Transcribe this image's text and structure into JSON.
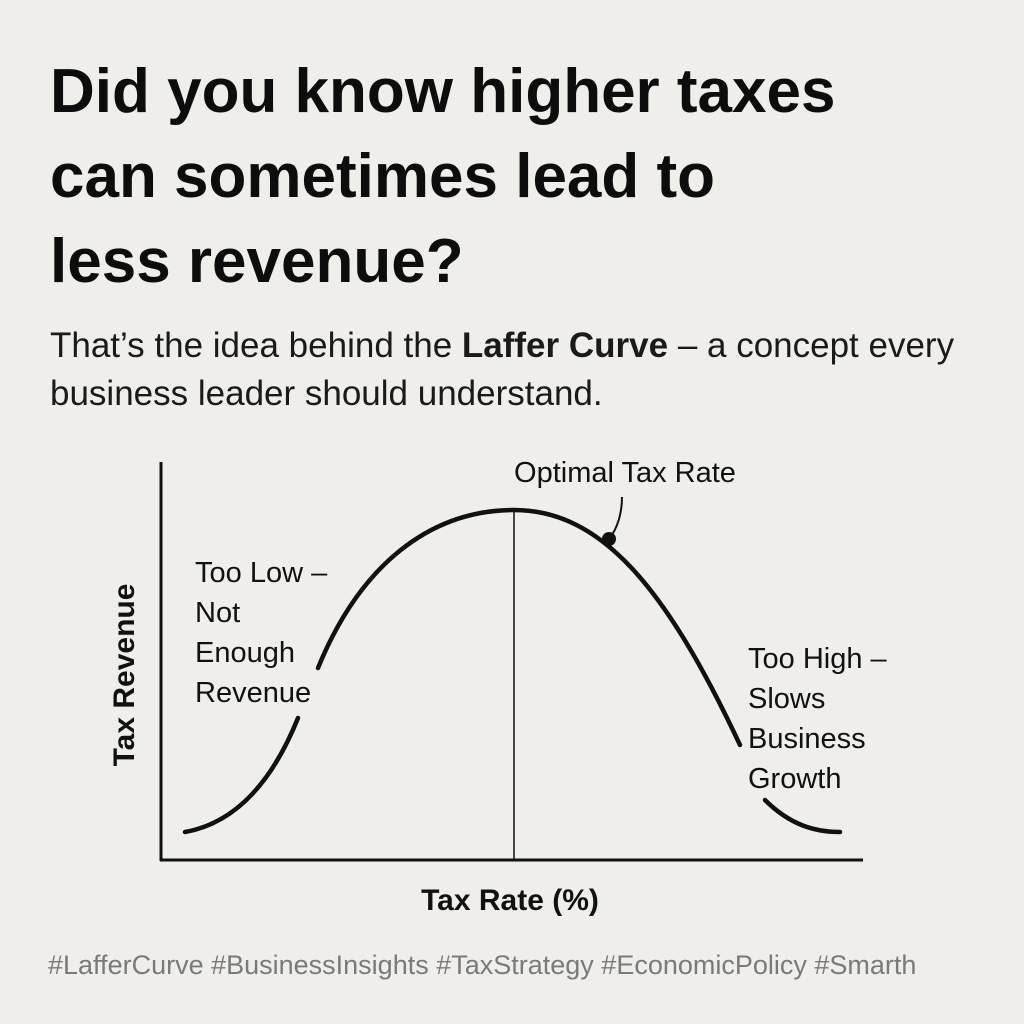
{
  "headline": {
    "lines": [
      "Did you know higher taxes",
      "can sometimes lead to",
      "less revenue?"
    ]
  },
  "subtitle": {
    "before": "That’s the idea behind the",
    "bold": "Laffer Curve",
    "after": "– a concept every business leader should understand."
  },
  "diagram": {
    "y_axis_label": "Tax Revenue",
    "x_axis_label": "Tax Rate (%)",
    "peak_label": "Optimal Tax Rate",
    "low_label": {
      "lines": [
        "Too Low –",
        "Not",
        "Enough",
        "Revenue"
      ]
    },
    "high_label": {
      "lines": [
        "Too High –",
        "Slows",
        "Business",
        "Growth"
      ]
    }
  },
  "hashtags": "#LafferCurve #BusinessInsights #TaxStrategy #EconomicPolicy #Smarth"
}
